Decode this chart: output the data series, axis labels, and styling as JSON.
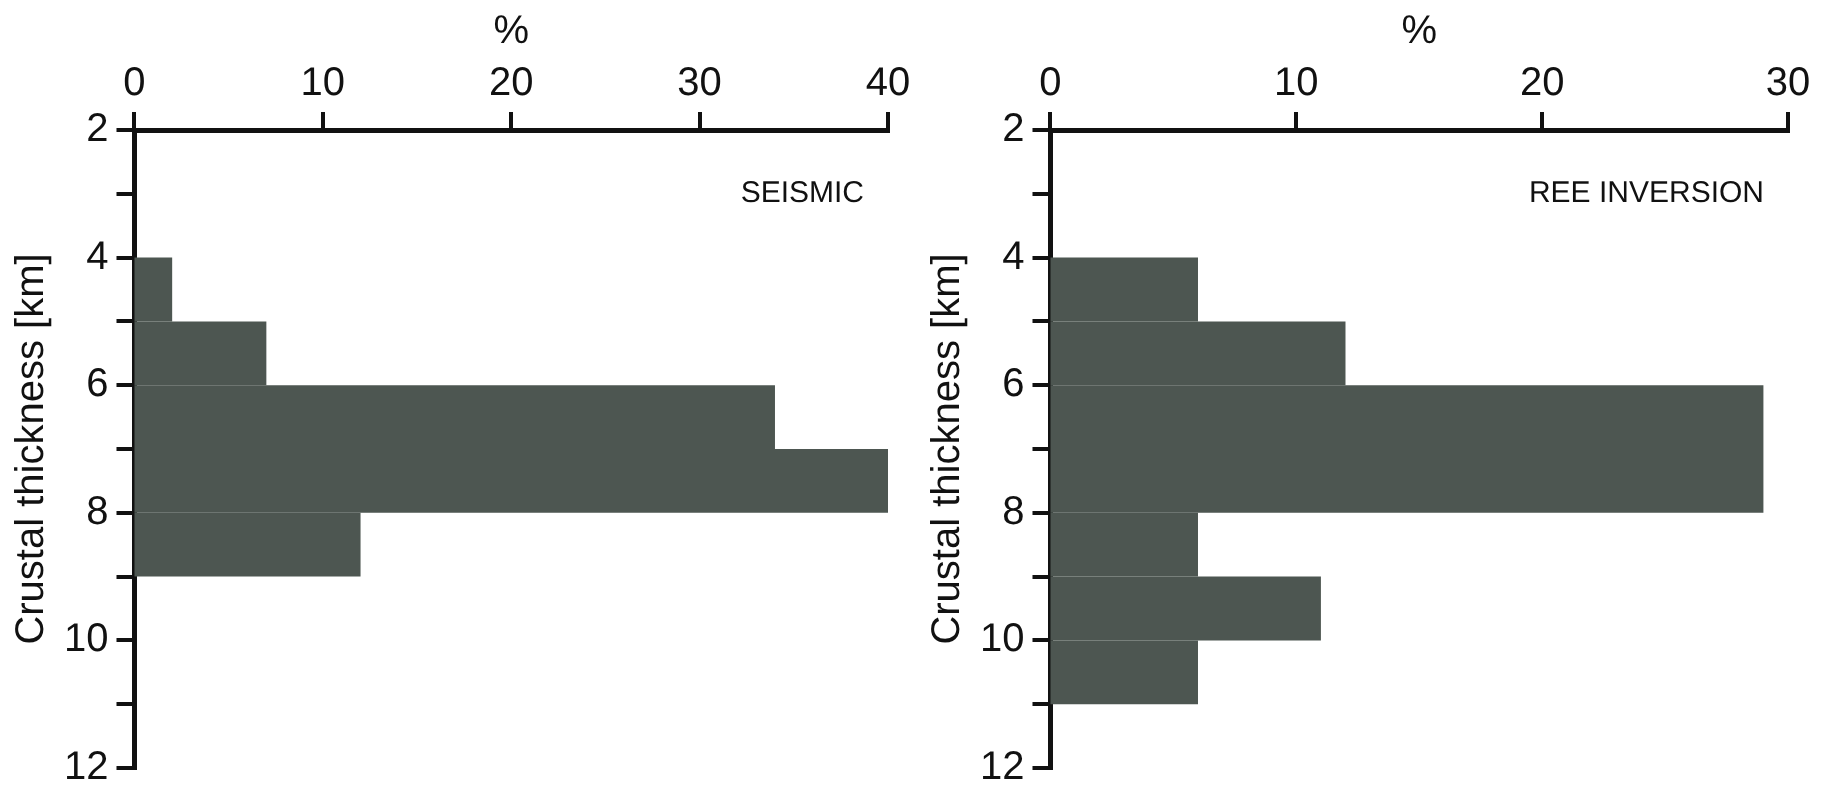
{
  "chart_data": [
    {
      "type": "histogram",
      "orientation": "horizontal",
      "xlabel": "%",
      "ylabel": "Crustal thickness [km]",
      "annotations": [
        "SEISMIC"
      ],
      "bins": [
        4,
        5,
        6,
        7,
        8,
        9
      ],
      "values": [
        2,
        7,
        34,
        40,
        12
      ],
      "color": "#4d5651",
      "xlim": [
        0,
        40
      ],
      "xticks": [
        0,
        10,
        20,
        30,
        40
      ],
      "ylim": [
        12,
        2
      ],
      "yticks": [
        2,
        {
          "value": 3,
          "label": null
        },
        4,
        {
          "value": 5,
          "label": null
        },
        6,
        {
          "value": 7,
          "label": null
        },
        8,
        {
          "value": 9,
          "label": null
        },
        10,
        {
          "value": 11,
          "label": null
        },
        12
      ],
      "grid": false
    },
    {
      "type": "histogram",
      "orientation": "horizontal",
      "xlabel": "%",
      "ylabel": "Crustal thickness [km]",
      "annotations": [
        "REE INVERSION"
      ],
      "bins": [
        4,
        5,
        6,
        7,
        8,
        9,
        10,
        11
      ],
      "values": [
        6,
        12,
        29,
        29,
        6,
        11,
        6
      ],
      "color": "#4d5651",
      "xlim": [
        0,
        30
      ],
      "xticks": [
        0,
        10,
        20,
        30
      ],
      "ylim": [
        12,
        2
      ],
      "yticks": [
        2,
        {
          "value": 3,
          "label": null
        },
        4,
        {
          "value": 5,
          "label": null
        },
        6,
        {
          "value": 7,
          "label": null
        },
        8,
        {
          "value": 9,
          "label": null
        },
        10,
        {
          "value": 11,
          "label": null
        },
        12
      ],
      "grid": false
    }
  ]
}
